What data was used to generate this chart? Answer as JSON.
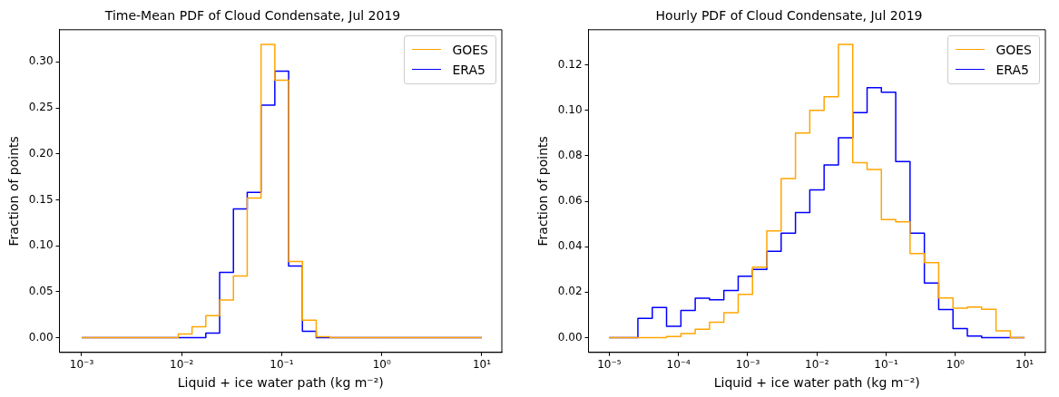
{
  "chart_data": [
    {
      "type": "histogram",
      "title": "Time-Mean PDF of Cloud Condensate, Jul 2019",
      "xlabel": "Liquid + ice water path (kg m⁻²)",
      "ylabel": "Fraction of points",
      "log": "x",
      "legend": "top right",
      "bins": [
        0.001,
        0.001374,
        0.001887,
        0.002593,
        0.003562,
        0.004894,
        0.006723,
        0.009236,
        0.01269,
        0.01743,
        0.02395,
        0.0329,
        0.0452,
        0.0621,
        0.0853,
        0.1172,
        0.161,
        0.2212,
        0.3039,
        0.4175,
        0.5736,
        0.788,
        1.083,
        1.487,
        2.043,
        2.807,
        3.857,
        5.298,
        7.279,
        10
      ],
      "series": [
        {
          "name": "GOES",
          "color": "#ffa500",
          "values": [
            0,
            0,
            0,
            0,
            0,
            0,
            0,
            0.004,
            0.012,
            0.024,
            0.041,
            0.067,
            0.152,
            0.319,
            0.28,
            0.083,
            0.019,
            0.001,
            0,
            0,
            0,
            0,
            0,
            0,
            0,
            0,
            0,
            0,
            0
          ]
        },
        {
          "name": "ERA5",
          "color": "#0000ff",
          "values": [
            0,
            0,
            0,
            0,
            0,
            0,
            0,
            0,
            0,
            0.005,
            0.071,
            0.14,
            0.158,
            0.253,
            0.29,
            0.078,
            0.007,
            0,
            0,
            0,
            0,
            0,
            0,
            0,
            0,
            0,
            0,
            0,
            0
          ]
        }
      ],
      "xlim": [
        0.000631,
        15.85
      ],
      "xticks": [
        {
          "value": 0.001,
          "label": "10⁻³"
        },
        {
          "value": 0.01,
          "label": "10⁻²"
        },
        {
          "value": 0.1,
          "label": "10⁻¹"
        },
        {
          "value": 1,
          "label": "10⁰"
        },
        {
          "value": 10,
          "label": "10¹"
        }
      ],
      "ylim": [
        -0.016,
        0.335
      ],
      "yticks": [
        {
          "value": 0,
          "label": "0.00"
        },
        {
          "value": 0.05,
          "label": "0.05"
        },
        {
          "value": 0.1,
          "label": "0.10"
        },
        {
          "value": 0.15,
          "label": "0.15"
        },
        {
          "value": 0.2,
          "label": "0.20"
        },
        {
          "value": 0.25,
          "label": "0.25"
        },
        {
          "value": 0.3,
          "label": "0.30"
        }
      ]
    },
    {
      "type": "histogram",
      "title": "Hourly PDF of Cloud Condensate, Jul 2019",
      "xlabel": "Liquid + ice water path (kg m⁻²)",
      "ylabel": "Fraction of points",
      "log": "x",
      "legend": "top right",
      "bins": [
        1e-05,
        1.61e-05,
        2.59e-05,
        4.18e-05,
        6.72e-05,
        0.0001083,
        0.0001743,
        0.0002807,
        0.000452,
        0.000728,
        0.001172,
        0.001887,
        0.003039,
        0.004894,
        0.00788,
        0.01269,
        0.02043,
        0.0329,
        0.053,
        0.0853,
        0.1374,
        0.2212,
        0.3562,
        0.5736,
        0.9236,
        1.487,
        2.395,
        3.857,
        6.21,
        10
      ],
      "series": [
        {
          "name": "GOES",
          "color": "#ffa500",
          "values": [
            0,
            0,
            0,
            0,
            0.0005,
            0.0018,
            0.0037,
            0.0068,
            0.011,
            0.019,
            0.031,
            0.047,
            0.07,
            0.09,
            0.1,
            0.106,
            0.129,
            0.077,
            0.074,
            0.052,
            0.051,
            0.037,
            0.033,
            0.0175,
            0.013,
            0.0135,
            0.0125,
            0.003,
            0
          ]
        },
        {
          "name": "ERA5",
          "color": "#0000ff",
          "values": [
            0,
            0,
            0.0085,
            0.0133,
            0.005,
            0.012,
            0.0174,
            0.0167,
            0.0207,
            0.027,
            0.03,
            0.038,
            0.046,
            0.055,
            0.065,
            0.076,
            0.088,
            0.099,
            0.11,
            0.108,
            0.0775,
            0.046,
            0.024,
            0.0124,
            0.004,
            0.0007,
            0,
            0,
            0
          ]
        }
      ],
      "xlim": [
        5.01e-06,
        19.95
      ],
      "xticks": [
        {
          "value": 1e-05,
          "label": "10⁻⁵"
        },
        {
          "value": 0.0001,
          "label": "10⁻⁴"
        },
        {
          "value": 0.001,
          "label": "10⁻³"
        },
        {
          "value": 0.01,
          "label": "10⁻²"
        },
        {
          "value": 0.1,
          "label": "10⁻¹"
        },
        {
          "value": 1,
          "label": "10⁰"
        },
        {
          "value": 10,
          "label": "10¹"
        }
      ],
      "ylim": [
        -0.0065,
        0.1355
      ],
      "yticks": [
        {
          "value": 0,
          "label": "0.00"
        },
        {
          "value": 0.02,
          "label": "0.02"
        },
        {
          "value": 0.04,
          "label": "0.04"
        },
        {
          "value": 0.06,
          "label": "0.06"
        },
        {
          "value": 0.08,
          "label": "0.08"
        },
        {
          "value": 0.1,
          "label": "0.10"
        },
        {
          "value": 0.12,
          "label": "0.12"
        }
      ]
    }
  ]
}
